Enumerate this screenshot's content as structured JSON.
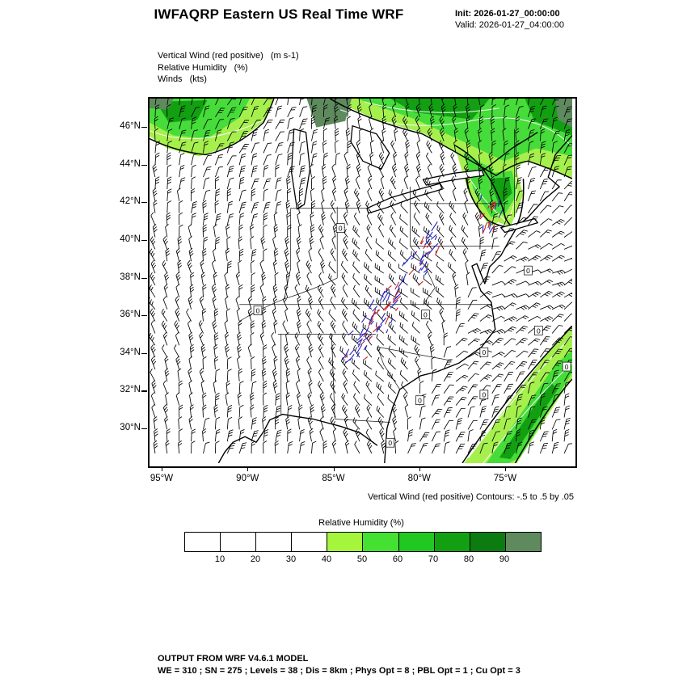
{
  "header": {
    "title": "IWFAQRP Eastern US Real Time WRF",
    "init_label": "Init: 2026-01-27_00:00:00",
    "valid_label": "Valid: 2026-01-27_04:00:00"
  },
  "legend": {
    "lines": [
      {
        "label": "Vertical Wind (red positive)",
        "units": "(m s-1)"
      },
      {
        "label": "Relative Humidity",
        "units": "(%)"
      },
      {
        "label": "Winds",
        "units": "(kts)"
      }
    ]
  },
  "map": {
    "lat_labels": [
      "46°N",
      "44°N",
      "42°N",
      "40°N",
      "38°N",
      "36°N",
      "34°N",
      "32°N",
      "30°N"
    ],
    "lon_labels": [
      "95°W",
      "90°W",
      "85°W",
      "80°W",
      "75°W"
    ],
    "zero_contour_label": "0"
  },
  "caption": "Vertical Wind (red positive) Contours: -.5 to .5 by .05",
  "colorbar": {
    "title": "Relative Humidity  (%)",
    "tick_labels": [
      "10",
      "20",
      "30",
      "40",
      "50",
      "60",
      "70",
      "80",
      "90"
    ],
    "colors": [
      "#ffffff",
      "#ffffff",
      "#ffffff",
      "#ffffff",
      "#a4f53c",
      "#44e032",
      "#22c822",
      "#12a012",
      "#0c7c10",
      "#5e8a5e"
    ]
  },
  "footer": {
    "line1": "OUTPUT FROM WRF V4.6.1 MODEL",
    "line2": "WE = 310 ; SN = 275 ; Levels = 38 ; Dis = 8km ; Phys Opt = 8 ; PBL Opt = 1 ; Cu Opt = 3"
  },
  "chart_data": {
    "type": "heatmap",
    "title": "IWFAQRP Eastern US Real Time WRF",
    "subtitle": "Init: 2026-01-27_00:00:00 / Valid: 2026-01-27_04:00:00",
    "projection": "Eastern US map",
    "x": {
      "label": "Longitude",
      "ticks": [
        "95°W",
        "90°W",
        "85°W",
        "80°W",
        "75°W"
      ],
      "range_deg_west": [
        96,
        71
      ]
    },
    "y": {
      "label": "Latitude",
      "ticks": [
        "46°N",
        "44°N",
        "42°N",
        "40°N",
        "38°N",
        "36°N",
        "34°N",
        "32°N",
        "30°N"
      ],
      "range_deg_north": [
        28.5,
        47.5
      ]
    },
    "fields": [
      {
        "name": "Relative Humidity",
        "units": "%",
        "render": "filled_shading",
        "levels": [
          10,
          20,
          30,
          40,
          50,
          60,
          70,
          80,
          90
        ],
        "high_humidity_regions": [
          "Great Lakes / upper Midwest band",
          "New York - New England - Canada border band",
          "Vermont / New Hampshire patch",
          "offshore Southeast Atlantic coastal band"
        ]
      },
      {
        "name": "Vertical Wind",
        "units": "m s-1",
        "render": "contours",
        "contour_min": -0.5,
        "contour_max": 0.5,
        "contour_interval": 0.05,
        "positive_color": "red",
        "negative_color": "blue",
        "active_region": "Appalachian ridge band from Georgia/Tennessee northeast to New England",
        "zero_contour_label": "0"
      },
      {
        "name": "Winds",
        "units": "kts",
        "render": "barbs",
        "coverage": "full domain grid"
      }
    ],
    "legend_position": "bottom colorbar",
    "grid": false,
    "colorbar": {
      "title": "Relative Humidity  (%)",
      "tick_labels": [
        10,
        20,
        30,
        40,
        50,
        60,
        70,
        80,
        90
      ],
      "colors": [
        "#ffffff",
        "#ffffff",
        "#ffffff",
        "#ffffff",
        "#a4f53c",
        "#44e032",
        "#22c822",
        "#12a012",
        "#0c7c10",
        "#5e8a5e"
      ]
    }
  }
}
